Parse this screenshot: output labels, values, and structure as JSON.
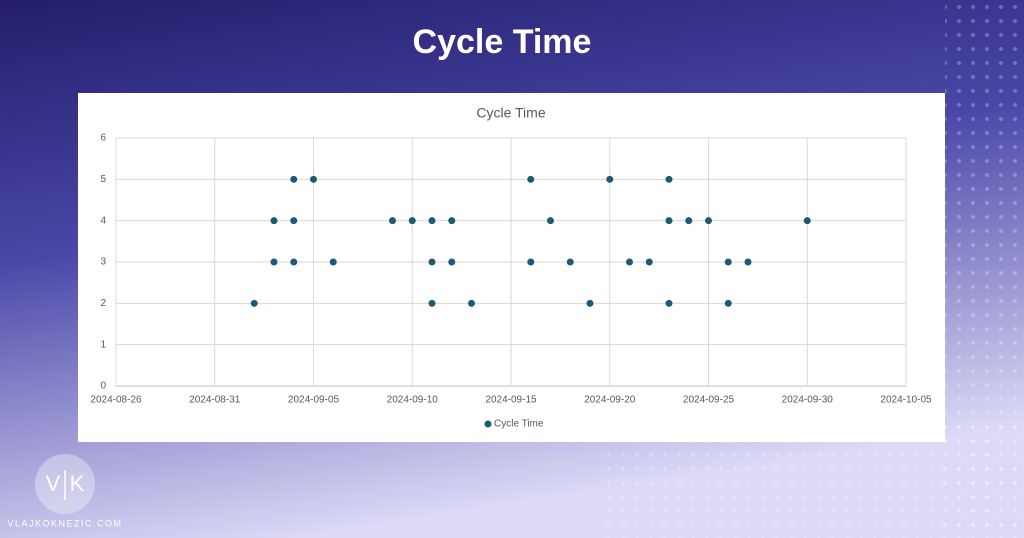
{
  "header": {
    "title": "Cycle Time"
  },
  "chart_data": {
    "type": "scatter",
    "title": "Cycle Time",
    "x": [
      "2024-09-02",
      "2024-09-03",
      "2024-09-03",
      "2024-09-04",
      "2024-09-04",
      "2024-09-04",
      "2024-09-05",
      "2024-09-06",
      "2024-09-09",
      "2024-09-10",
      "2024-09-11",
      "2024-09-11",
      "2024-09-11",
      "2024-09-12",
      "2024-09-12",
      "2024-09-13",
      "2024-09-16",
      "2024-09-16",
      "2024-09-17",
      "2024-09-18",
      "2024-09-19",
      "2024-09-20",
      "2024-09-21",
      "2024-09-22",
      "2024-09-23",
      "2024-09-23",
      "2024-09-23",
      "2024-09-24",
      "2024-09-25",
      "2024-09-26",
      "2024-09-26",
      "2024-09-27",
      "2024-09-30"
    ],
    "series": [
      {
        "name": "Cycle Time",
        "color": "#1b5b78",
        "values": [
          2,
          4,
          3,
          5,
          4,
          3,
          5,
          3,
          4,
          4,
          4,
          3,
          2,
          4,
          3,
          2,
          5,
          3,
          4,
          3,
          2,
          5,
          3,
          3,
          5,
          4,
          2,
          4,
          4,
          3,
          2,
          3,
          4
        ]
      }
    ],
    "xlim": [
      "2024-08-26",
      "2024-10-05"
    ],
    "xticks": [
      "2024-08-26",
      "2024-08-31",
      "2024-09-05",
      "2024-09-10",
      "2024-09-15",
      "2024-09-20",
      "2024-09-25",
      "2024-09-30",
      "2024-10-05"
    ],
    "ylim": [
      0,
      6
    ],
    "yticks": [
      0,
      1,
      2,
      3,
      4,
      5,
      6
    ],
    "grid": true,
    "legend": "bottom"
  },
  "footer": {
    "logo_left": "V",
    "logo_right": "K",
    "site": "VLAJKOKNEZIC.COM"
  }
}
